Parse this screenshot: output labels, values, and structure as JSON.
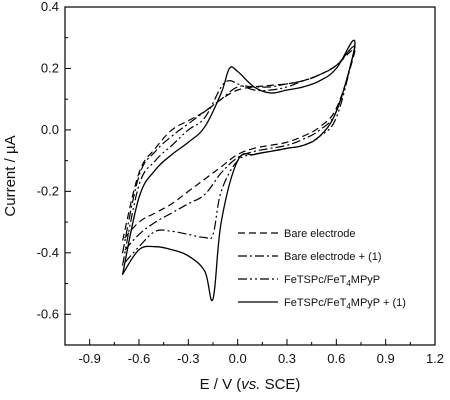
{
  "chart_data": {
    "type": "line",
    "xlabel_parts": [
      "E / V (",
      "vs.",
      " SCE)"
    ],
    "ylabel": "Current / µA",
    "xlim": [
      -1.05,
      1.2
    ],
    "ylim": [
      -0.7,
      0.4
    ],
    "x_ticks": [
      -0.9,
      -0.6,
      -0.3,
      0.0,
      0.3,
      0.6,
      0.9,
      1.2
    ],
    "x_tick_labels": [
      "-0.9",
      "-0.6",
      "-0.3",
      "0.0",
      "0.3",
      "0.6",
      "0.9",
      "1.2"
    ],
    "y_ticks": [
      -0.6,
      -0.4,
      -0.2,
      0.0,
      0.2,
      0.4
    ],
    "y_tick_labels": [
      "-0.6",
      "-0.4",
      "-0.2",
      "0.0",
      "0.2",
      "0.4"
    ],
    "grid": false,
    "legend_position": "lower-right",
    "series": [
      {
        "name": "Bare electrode",
        "dash": "7,4",
        "x": [
          -0.7,
          -0.6,
          -0.5,
          -0.4,
          -0.3,
          -0.2,
          -0.1,
          0.0,
          0.1,
          0.2,
          0.3,
          0.4,
          0.5,
          0.6,
          0.7,
          0.7,
          0.6,
          0.5,
          0.4,
          0.3,
          0.2,
          0.1,
          0.0,
          -0.1,
          -0.2,
          -0.3,
          -0.4,
          -0.5,
          -0.6,
          -0.7
        ],
        "y": [
          -0.36,
          -0.14,
          -0.06,
          0.0,
          0.03,
          0.06,
          0.1,
          0.13,
          0.14,
          0.145,
          0.15,
          0.16,
          0.18,
          0.21,
          0.26,
          0.23,
          0.07,
          0.01,
          -0.02,
          -0.04,
          -0.05,
          -0.06,
          -0.08,
          -0.12,
          -0.16,
          -0.2,
          -0.24,
          -0.27,
          -0.3,
          -0.36
        ]
      },
      {
        "name": "Bare electrode + (1)",
        "dash": "9,3,2,3",
        "x": [
          -0.7,
          -0.6,
          -0.5,
          -0.4,
          -0.3,
          -0.2,
          -0.1,
          0.0,
          0.1,
          0.2,
          0.3,
          0.4,
          0.5,
          0.6,
          0.7,
          0.7,
          0.6,
          0.5,
          0.4,
          0.3,
          0.2,
          0.1,
          0.0,
          -0.1,
          -0.2,
          -0.3,
          -0.4,
          -0.5,
          -0.6,
          -0.7
        ],
        "y": [
          -0.4,
          -0.15,
          -0.07,
          -0.02,
          0.02,
          0.06,
          0.1,
          0.14,
          0.14,
          0.14,
          0.15,
          0.16,
          0.18,
          0.21,
          0.27,
          0.24,
          0.06,
          0.0,
          -0.03,
          -0.05,
          -0.06,
          -0.07,
          -0.09,
          -0.14,
          -0.21,
          -0.24,
          -0.27,
          -0.3,
          -0.34,
          -0.4
        ]
      },
      {
        "name": "FeTSPc/FeT4MPyP",
        "dash": "9,3,2,3,2,3",
        "x": [
          -0.7,
          -0.6,
          -0.5,
          -0.4,
          -0.3,
          -0.2,
          -0.1,
          -0.05,
          0.0,
          0.1,
          0.2,
          0.3,
          0.4,
          0.5,
          0.6,
          0.7,
          0.7,
          0.6,
          0.5,
          0.4,
          0.3,
          0.2,
          0.1,
          0.0,
          -0.1,
          -0.15,
          -0.2,
          -0.3,
          -0.4,
          -0.5,
          -0.6,
          -0.7
        ],
        "y": [
          -0.44,
          -0.18,
          -0.1,
          -0.05,
          0.0,
          0.04,
          0.14,
          0.16,
          0.15,
          0.13,
          0.13,
          0.14,
          0.16,
          0.18,
          0.21,
          0.27,
          0.24,
          0.04,
          -0.02,
          -0.05,
          -0.06,
          -0.07,
          -0.08,
          -0.1,
          -0.2,
          -0.34,
          -0.35,
          -0.34,
          -0.33,
          -0.33,
          -0.38,
          -0.44
        ]
      },
      {
        "name": "FeTSPc/FeT4MPyP + (1)",
        "dash": "",
        "x": [
          -0.7,
          -0.6,
          -0.5,
          -0.4,
          -0.3,
          -0.2,
          -0.1,
          -0.05,
          0.0,
          0.1,
          0.2,
          0.3,
          0.4,
          0.5,
          0.6,
          0.7,
          0.7,
          0.6,
          0.5,
          0.4,
          0.3,
          0.2,
          0.1,
          0.0,
          -0.1,
          -0.15,
          -0.2,
          -0.3,
          -0.4,
          -0.5,
          -0.6,
          -0.7
        ],
        "y": [
          -0.47,
          -0.22,
          -0.13,
          -0.08,
          -0.04,
          0.01,
          0.12,
          0.2,
          0.19,
          0.14,
          0.12,
          0.13,
          0.14,
          0.16,
          0.2,
          0.29,
          0.24,
          0.06,
          -0.02,
          -0.05,
          -0.06,
          -0.07,
          -0.08,
          -0.1,
          -0.3,
          -0.55,
          -0.46,
          -0.41,
          -0.39,
          -0.38,
          -0.39,
          -0.47
        ]
      }
    ]
  },
  "legend": {
    "items": [
      {
        "main": "Bare electrode",
        "sub": "",
        "rest": ""
      },
      {
        "main": "Bare electrode + (1)",
        "sub": "",
        "rest": ""
      },
      {
        "main": "FeTSPc/FeT",
        "sub": "4",
        "rest": "MPyP"
      },
      {
        "main": "FeTSPc/FeT",
        "sub": "4",
        "rest": "MPyP + (1)"
      }
    ]
  }
}
